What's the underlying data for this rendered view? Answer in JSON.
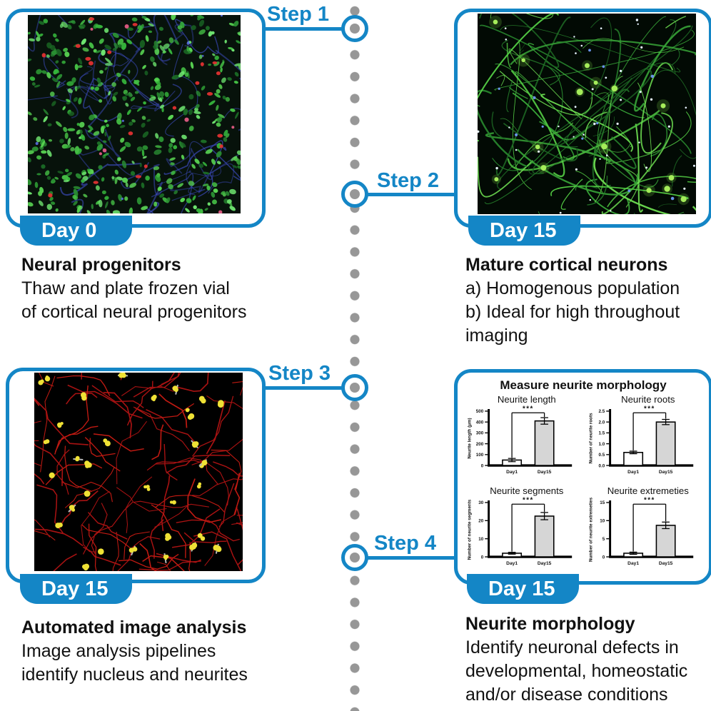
{
  "colors": {
    "accent_blue": "#1486c6",
    "dot_gray": "#979797",
    "text": "#111111"
  },
  "timeline": {
    "steps": [
      {
        "label": "Step 1"
      },
      {
        "label": "Step 2"
      },
      {
        "label": "Step 3"
      },
      {
        "label": "Step 4"
      }
    ]
  },
  "panels": [
    {
      "day_label": "Day 0",
      "title": "Neural progenitors",
      "lines": [
        "Thaw and plate frozen vial",
        "of cortical neural progenitors"
      ],
      "image_alt": "Fluorescence micrograph of dense neural progenitors: many small green cells with blue strands and scattered red cells on a dark background"
    },
    {
      "day_label": "Day 15",
      "title": "Mature cortical neurons",
      "lines": [
        "a) Homogenous population",
        "b) Ideal for high throughout",
        "imaging"
      ],
      "image_alt": "Fluorescence micrograph of mature cortical neurons: green branching neurites with bright cell bodies and small white and blue dots on black"
    },
    {
      "day_label": "Day 15",
      "title": "Automated image analysis",
      "lines": [
        "Image analysis pipelines",
        "identify nucleus and neurites"
      ],
      "image_alt": "Automated tracing output: thin red neurite skeletons and yellow nucleus blobs on a black background"
    },
    {
      "day_label": "Day 15",
      "title": "Neurite morphology",
      "lines": [
        "Identify neuronal defects in",
        "developmental, homeostatic",
        "and/or disease conditions"
      ]
    }
  ],
  "chart_panel_title": "Measure neurite morphology",
  "chart_data": [
    {
      "type": "bar",
      "title": "Neurite length",
      "ylabel": "Neurite length (μm)",
      "categories": [
        "Day1",
        "Day15"
      ],
      "values": [
        50,
        410
      ],
      "errors": [
        15,
        30
      ],
      "ylim": [
        0,
        500
      ],
      "yticks": [
        "0",
        "100",
        "200",
        "300",
        "400",
        "500"
      ],
      "bar_colors": [
        "#ffffff",
        "#d6d6d6"
      ],
      "significance": "***"
    },
    {
      "type": "bar",
      "title": "Neurite roots",
      "ylabel": "Number of neurite roots",
      "categories": [
        "Day1",
        "Day15"
      ],
      "values": [
        0.6,
        2.0
      ],
      "errors": [
        0.06,
        0.12
      ],
      "ylim": [
        0,
        2.5
      ],
      "yticks": [
        "0.0",
        "0.5",
        "1.0",
        "1.5",
        "2.0",
        "2.5"
      ],
      "bar_colors": [
        "#ffffff",
        "#d6d6d6"
      ],
      "significance": "***"
    },
    {
      "type": "bar",
      "title": "Neurite segments",
      "ylabel": "Number of neurite segments",
      "categories": [
        "Day1",
        "Day15"
      ],
      "values": [
        2,
        22.5
      ],
      "errors": [
        0.5,
        2
      ],
      "ylim": [
        0,
        30
      ],
      "yticks": [
        "0",
        "10",
        "20",
        "30"
      ],
      "bar_colors": [
        "#ffffff",
        "#d6d6d6"
      ],
      "significance": "***"
    },
    {
      "type": "bar",
      "title": "Neurite extremeties",
      "ylabel": "Number of neurite extremeties",
      "categories": [
        "Day1",
        "Day15"
      ],
      "values": [
        1,
        8.7
      ],
      "errors": [
        0.3,
        0.9
      ],
      "ylim": [
        0,
        15
      ],
      "yticks": [
        "0",
        "5",
        "10",
        "15"
      ],
      "bar_colors": [
        "#ffffff",
        "#d6d6d6"
      ],
      "significance": "***"
    }
  ]
}
